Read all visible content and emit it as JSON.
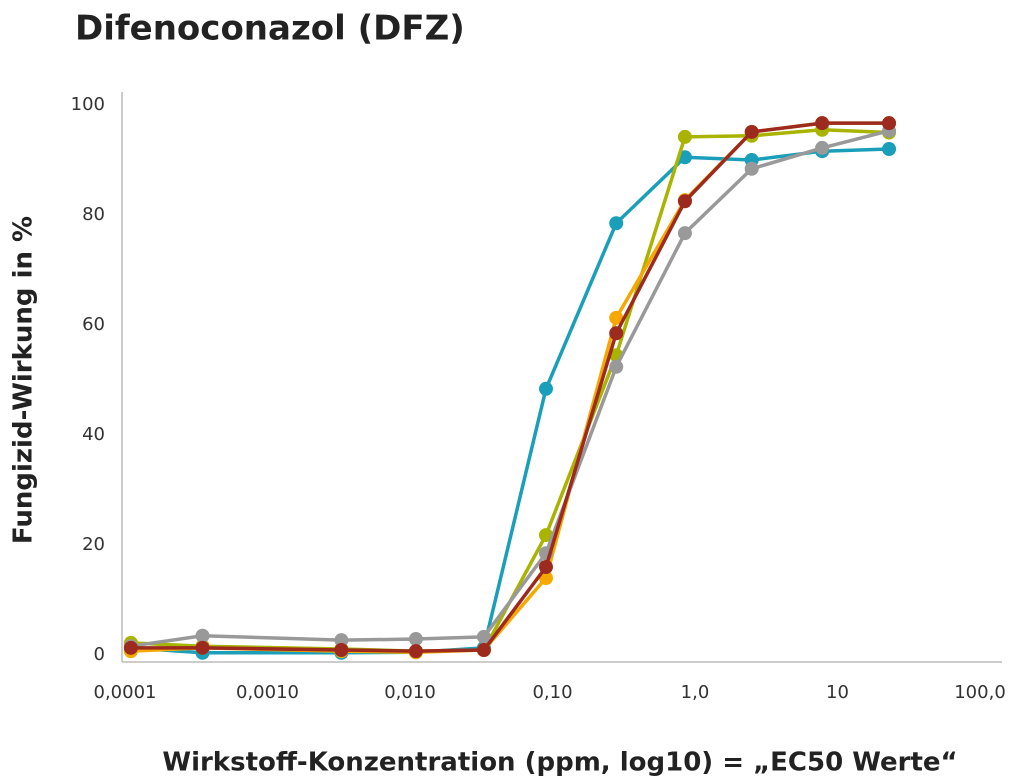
{
  "chart_data": {
    "type": "line",
    "title": "Difenoconazol (DFZ)",
    "xlabel": "Wirkstoff-Konzentration (ppm, log10) = „EC50 Werte“",
    "ylabel": "Fungizid-Wirkung in %",
    "xscale": "log",
    "x": [
      0.00011,
      0.00035,
      0.0033,
      0.011,
      0.033,
      0.09,
      0.28,
      0.85,
      2.5,
      7.8,
      23
    ],
    "series": [
      {
        "color": "#1a9fba",
        "values": [
          1.3,
          0.4,
          0.4,
          0.5,
          1.3,
          48.4,
          78.5,
          90.5,
          90,
          91.6,
          92
        ]
      },
      {
        "color": "#a8b400",
        "values": [
          2.2,
          1.6,
          1.1,
          0.7,
          0.9,
          21.8,
          54.5,
          94.2,
          94.4,
          95.5,
          95
        ]
      },
      {
        "color": "#f5a800",
        "values": [
          0.7,
          1.3,
          0.7,
          0.5,
          0.9,
          14,
          61.3,
          82.7,
          95.1,
          96.7,
          96.7
        ]
      },
      {
        "color": "#999999",
        "values": [
          1.6,
          3.5,
          2.7,
          2.9,
          3.3,
          18.5,
          52.4,
          76.7,
          88.4,
          92.2,
          95.3
        ]
      },
      {
        "color": "#9c2a1e",
        "values": [
          1.3,
          1.3,
          0.9,
          0.7,
          0.9,
          16,
          58.5,
          82.5,
          95.1,
          96.7,
          96.7
        ]
      }
    ],
    "xlim": [
      0.0001,
      100
    ],
    "xticks": [
      {
        "value": 0.0001,
        "label": "0,0001"
      },
      {
        "value": 0.001,
        "label": "0,0010"
      },
      {
        "value": 0.01,
        "label": "0,010"
      },
      {
        "value": 0.1,
        "label": "0,10"
      },
      {
        "value": 1,
        "label": "1,0"
      },
      10,
      {
        "value": 100,
        "label": "100,0"
      }
    ],
    "ylim": [
      0,
      100
    ],
    "yticks": [
      0,
      20,
      40,
      60,
      80,
      100
    ]
  }
}
